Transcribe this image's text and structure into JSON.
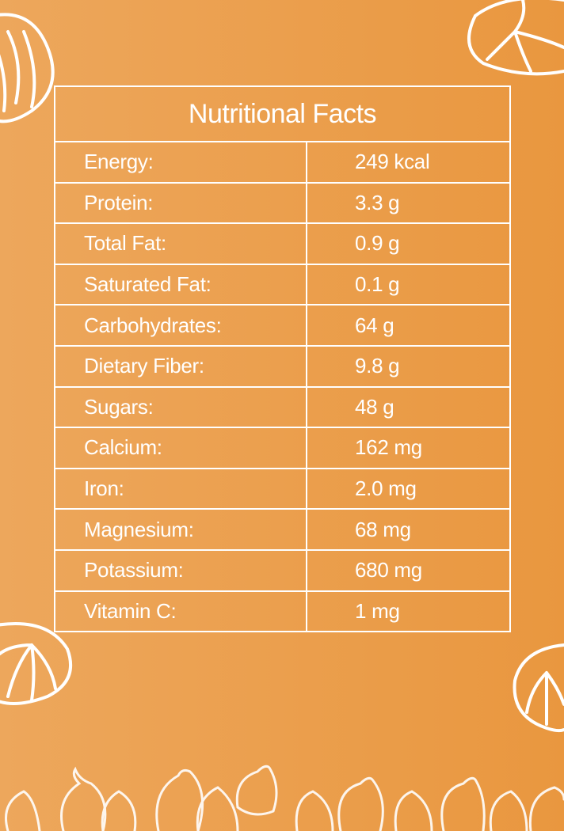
{
  "table": {
    "title": "Nutritional Facts",
    "rows": [
      [
        "Energy:",
        "249 kcal"
      ],
      [
        "Protein:",
        "3.3 g"
      ],
      [
        "Total Fat:",
        "0.9 g"
      ],
      [
        "Saturated Fat:",
        "0.1 g"
      ],
      [
        "Carbohydrates:",
        "64 g"
      ],
      [
        "Dietary Fiber:",
        "9.8 g"
      ],
      [
        "Sugars:",
        "48 g"
      ],
      [
        "Calcium:",
        "162 mg"
      ],
      [
        "Iron:",
        "2.0 mg"
      ],
      [
        "Magnesium:",
        "68 mg"
      ],
      [
        "Potassium:",
        "680 mg"
      ],
      [
        "Vitamin C:",
        "1 mg"
      ]
    ]
  }
}
